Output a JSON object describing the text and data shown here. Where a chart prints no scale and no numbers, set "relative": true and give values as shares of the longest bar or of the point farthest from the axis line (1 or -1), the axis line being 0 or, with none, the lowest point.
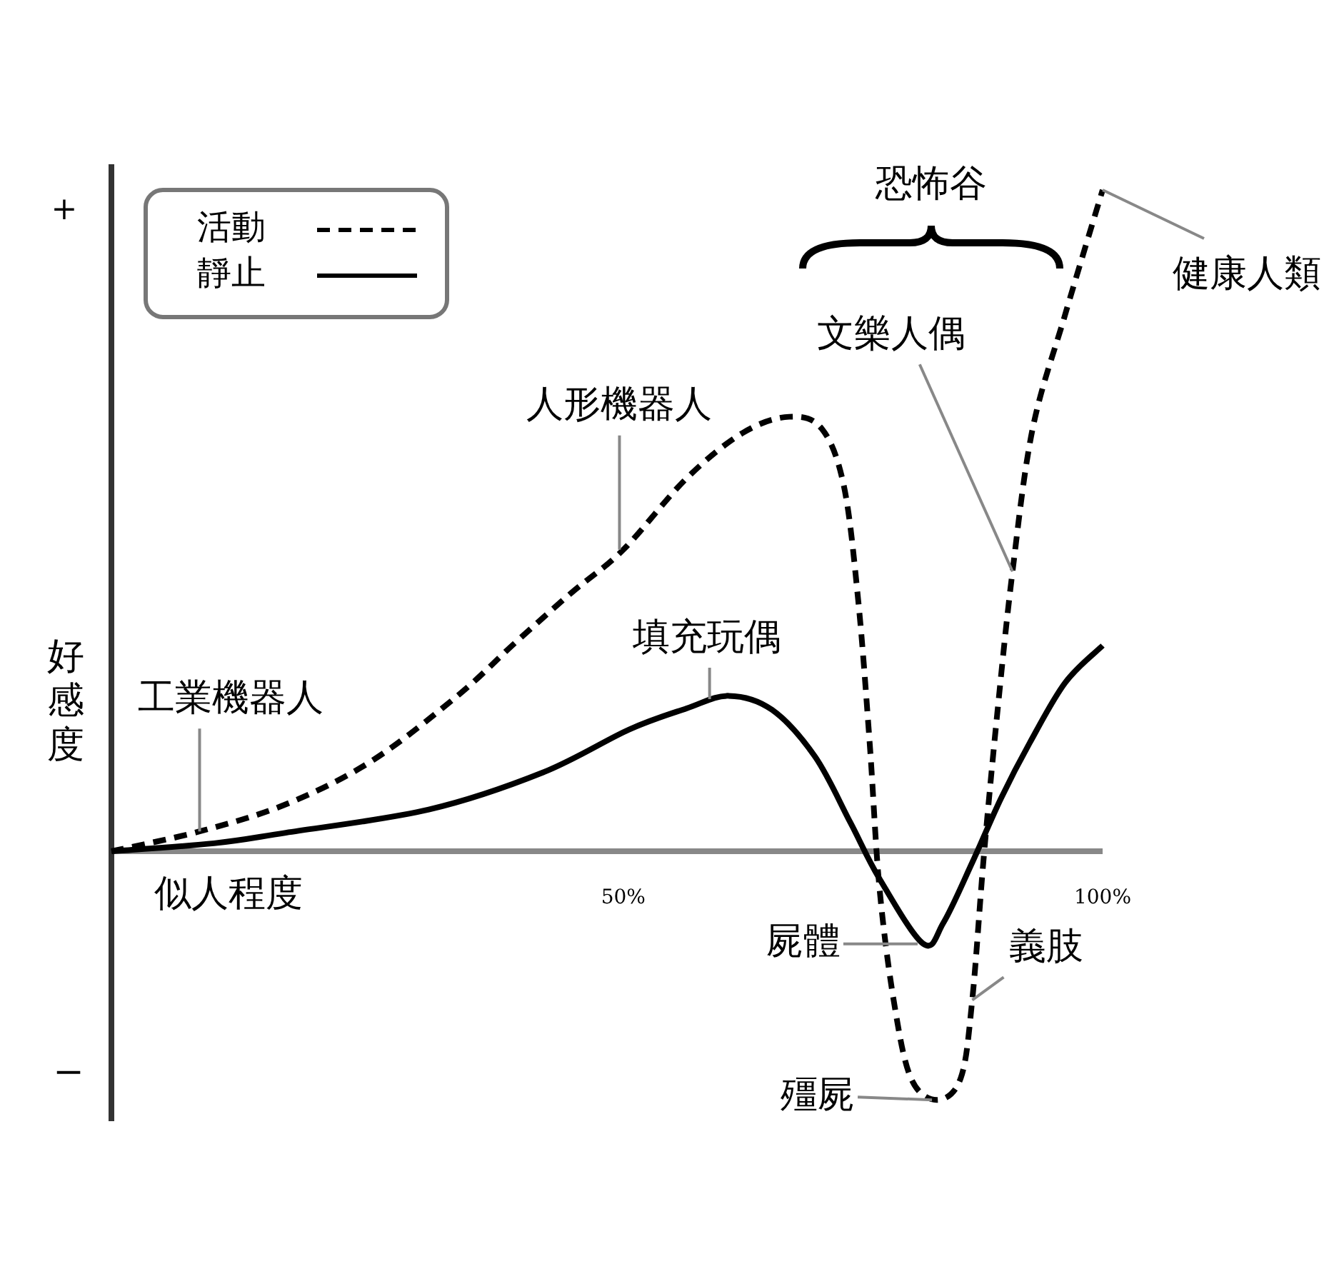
{
  "chart_data": {
    "type": "line",
    "relative": true,
    "xlabel": "似人程度",
    "ylabel": "好感度",
    "legend": "top left",
    "tick_labels": "x",
    "xlim": [
      -3.4,
      100
    ],
    "xticks": [
      {
        "value": 50,
        "label": "50%"
      },
      {
        "value": 100,
        "label": "100%"
      }
    ],
    "series": [
      {
        "name": "活動",
        "color": "#000000",
        "line_style": "dashed",
        "x": [
          -3.4,
          5.8,
          14.8,
          23.7,
          32.7,
          38.7,
          44.6,
          50,
          56.6,
          62.5,
          67.3,
          70.7,
          73,
          74.5,
          75.7,
          76.7,
          78.2,
          80,
          82.7,
          85.2,
          86.4,
          87.6,
          89,
          90.6,
          92.7,
          96.1,
          100
        ],
        "values": [
          0,
          0.03,
          0.071,
          0.136,
          0.235,
          0.315,
          0.391,
          0.456,
          0.564,
          0.633,
          0.657,
          0.639,
          0.553,
          0.38,
          0.164,
          -0.052,
          -0.225,
          -0.343,
          -0.376,
          -0.343,
          -0.225,
          -0.009,
          0.207,
          0.423,
          0.639,
          0.812,
          1
        ]
      },
      {
        "name": "靜止",
        "color": "#000000",
        "line_style": "solid",
        "x": [
          -3.4,
          7.3,
          14.8,
          29.7,
          41.6,
          50.6,
          56.6,
          61,
          65.5,
          70,
          73.7,
          76.7,
          81.3,
          83.4,
          86.4,
          89.4,
          92.4,
          96.1,
          100
        ],
        "values": [
          0,
          0.012,
          0.028,
          0.063,
          0.119,
          0.184,
          0.216,
          0.235,
          0.214,
          0.143,
          0.043,
          -0.041,
          -0.14,
          -0.108,
          -0.017,
          0.08,
          0.164,
          0.255,
          0.311
        ]
      }
    ],
    "annotations": [
      "+",
      "−",
      "恐怖谷",
      {
        "text": "工業機器人",
        "x": 5.8,
        "y": 0.03
      },
      {
        "text": "人形機器人",
        "x": 49.6,
        "y": 0.456
      },
      {
        "text": "填充玩偶",
        "x": 59,
        "y": 0.23
      },
      {
        "text": "文樂人偶",
        "x": 90.6,
        "y": 0.423
      },
      {
        "text": "健康人類",
        "x": 100,
        "y": 1
      },
      {
        "text": "屍體",
        "x": 80.7,
        "y": -0.14
      },
      {
        "text": "殭屍",
        "x": 82.2,
        "y": -0.376
      },
      {
        "text": "義肢",
        "x": 86.4,
        "y": -0.225
      }
    ]
  }
}
